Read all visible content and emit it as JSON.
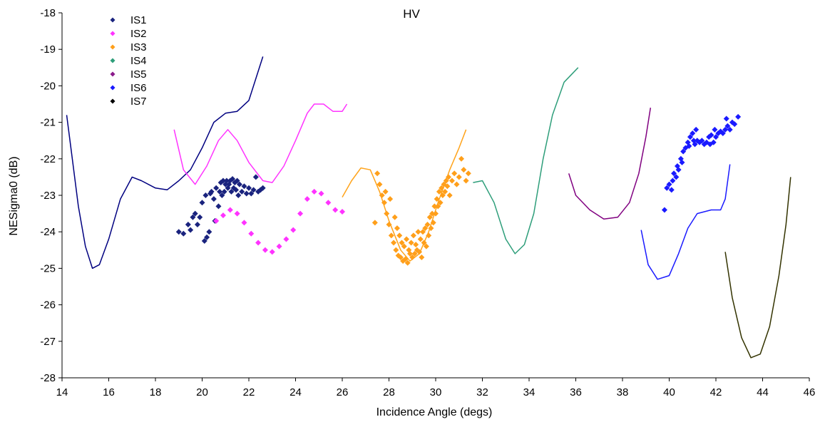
{
  "chart_data": {
    "type": "scatter",
    "title": "HV",
    "xlabel": "Incidence Angle (degs)",
    "ylabel": "NESigma0 (dB)",
    "xlim": [
      14,
      46
    ],
    "ylim": [
      -28,
      -18
    ],
    "xticks": [
      "14",
      "16",
      "18",
      "20",
      "22",
      "24",
      "26",
      "28",
      "30",
      "32",
      "34",
      "36",
      "38",
      "40",
      "42",
      "44",
      "46"
    ],
    "yticks": [
      "-28",
      "-27",
      "-26",
      "-25",
      "-24",
      "-23",
      "-22",
      "-21",
      "-20",
      "-19",
      "-18"
    ],
    "grid": false,
    "legend_position": "top-left",
    "legend": [
      {
        "name": "IS1",
        "color": "#1a237e"
      },
      {
        "name": "IS2",
        "color": "#ff33ff"
      },
      {
        "name": "IS3",
        "color": "#ff9f1a"
      },
      {
        "name": "IS4",
        "color": "#2e9e7a"
      },
      {
        "name": "IS5",
        "color": "#8b1a8b"
      },
      {
        "name": "IS6",
        "color": "#1a1aff"
      },
      {
        "name": "IS7",
        "color": "#000000"
      }
    ],
    "lines": [
      {
        "color": "#000080",
        "points": [
          [
            14.2,
            -20.8
          ],
          [
            14.4,
            -21.8
          ],
          [
            14.7,
            -23.3
          ],
          [
            15.0,
            -24.4
          ],
          [
            15.3,
            -25.0
          ],
          [
            15.6,
            -24.9
          ],
          [
            16.0,
            -24.2
          ],
          [
            16.5,
            -23.1
          ],
          [
            17.0,
            -22.5
          ],
          [
            17.4,
            -22.6
          ],
          [
            18.0,
            -22.8
          ],
          [
            18.5,
            -22.85
          ],
          [
            19.0,
            -22.6
          ],
          [
            19.5,
            -22.3
          ],
          [
            20.0,
            -21.7
          ],
          [
            20.5,
            -21.0
          ],
          [
            21.0,
            -20.75
          ],
          [
            21.5,
            -20.7
          ],
          [
            22.0,
            -20.4
          ],
          [
            22.6,
            -19.2
          ]
        ]
      },
      {
        "color": "#ff33ff",
        "points": [
          [
            18.8,
            -21.2
          ],
          [
            19.2,
            -22.3
          ],
          [
            19.7,
            -22.7
          ],
          [
            20.2,
            -22.2
          ],
          [
            20.7,
            -21.5
          ],
          [
            21.1,
            -21.2
          ],
          [
            21.5,
            -21.5
          ],
          [
            22.0,
            -22.1
          ],
          [
            22.6,
            -22.6
          ],
          [
            23.0,
            -22.65
          ],
          [
            23.5,
            -22.2
          ],
          [
            24.0,
            -21.5
          ],
          [
            24.5,
            -20.75
          ],
          [
            24.8,
            -20.5
          ],
          [
            25.2,
            -20.5
          ],
          [
            25.6,
            -20.7
          ],
          [
            26.0,
            -20.7
          ],
          [
            26.2,
            -20.5
          ]
        ]
      },
      {
        "color": "#ffa31a",
        "points": [
          [
            26.0,
            -23.05
          ],
          [
            26.4,
            -22.6
          ],
          [
            26.8,
            -22.25
          ],
          [
            27.2,
            -22.3
          ],
          [
            27.6,
            -22.9
          ],
          [
            28.0,
            -23.7
          ],
          [
            28.5,
            -24.5
          ],
          [
            28.9,
            -24.8
          ],
          [
            29.3,
            -24.6
          ],
          [
            29.7,
            -24.0
          ],
          [
            30.1,
            -23.2
          ],
          [
            30.6,
            -22.3
          ],
          [
            31.0,
            -21.7
          ],
          [
            31.3,
            -21.2
          ]
        ]
      },
      {
        "color": "#2e9e7a",
        "points": [
          [
            31.6,
            -22.65
          ],
          [
            32.0,
            -22.6
          ],
          [
            32.5,
            -23.2
          ],
          [
            33.0,
            -24.2
          ],
          [
            33.4,
            -24.6
          ],
          [
            33.8,
            -24.35
          ],
          [
            34.2,
            -23.5
          ],
          [
            34.6,
            -22.0
          ],
          [
            35.0,
            -20.8
          ],
          [
            35.5,
            -19.9
          ],
          [
            36.1,
            -19.5
          ]
        ]
      },
      {
        "color": "#800080",
        "points": [
          [
            35.7,
            -22.4
          ],
          [
            36.0,
            -23.0
          ],
          [
            36.6,
            -23.4
          ],
          [
            37.2,
            -23.65
          ],
          [
            37.8,
            -23.6
          ],
          [
            38.3,
            -23.2
          ],
          [
            38.7,
            -22.4
          ],
          [
            39.0,
            -21.4
          ],
          [
            39.2,
            -20.6
          ]
        ]
      },
      {
        "color": "#1a1aff",
        "points": [
          [
            38.8,
            -23.95
          ],
          [
            39.1,
            -24.9
          ],
          [
            39.5,
            -25.3
          ],
          [
            40.0,
            -25.2
          ],
          [
            40.4,
            -24.6
          ],
          [
            40.8,
            -23.9
          ],
          [
            41.2,
            -23.5
          ],
          [
            41.8,
            -23.4
          ],
          [
            42.2,
            -23.4
          ],
          [
            42.4,
            -23.1
          ],
          [
            42.6,
            -22.15
          ]
        ]
      },
      {
        "color": "#333300",
        "points": [
          [
            42.4,
            -24.55
          ],
          [
            42.7,
            -25.8
          ],
          [
            43.1,
            -26.9
          ],
          [
            43.5,
            -27.45
          ],
          [
            43.9,
            -27.35
          ],
          [
            44.3,
            -26.6
          ],
          [
            44.7,
            -25.2
          ],
          [
            45.0,
            -23.8
          ],
          [
            45.2,
            -22.5
          ]
        ]
      }
    ],
    "scatter": [
      {
        "name": "IS1",
        "color": "#1a237e",
        "points": [
          [
            19.0,
            -24.0
          ],
          [
            19.2,
            -24.05
          ],
          [
            19.4,
            -23.8
          ],
          [
            19.5,
            -23.95
          ],
          [
            19.6,
            -23.6
          ],
          [
            19.7,
            -23.5
          ],
          [
            19.8,
            -23.8
          ],
          [
            19.9,
            -23.6
          ],
          [
            20.0,
            -23.2
          ],
          [
            20.1,
            -24.25
          ],
          [
            20.15,
            -23.0
          ],
          [
            20.2,
            -24.15
          ],
          [
            20.3,
            -24.0
          ],
          [
            20.35,
            -22.95
          ],
          [
            20.4,
            -22.9
          ],
          [
            20.5,
            -23.1
          ],
          [
            20.55,
            -23.7
          ],
          [
            20.6,
            -22.8
          ],
          [
            20.7,
            -23.3
          ],
          [
            20.75,
            -22.9
          ],
          [
            20.8,
            -22.65
          ],
          [
            20.85,
            -23.0
          ],
          [
            20.9,
            -22.6
          ],
          [
            20.95,
            -22.9
          ],
          [
            21.0,
            -22.7
          ],
          [
            21.05,
            -22.6
          ],
          [
            21.1,
            -22.8
          ],
          [
            21.15,
            -22.7
          ],
          [
            21.2,
            -22.6
          ],
          [
            21.25,
            -22.9
          ],
          [
            21.3,
            -22.55
          ],
          [
            21.35,
            -22.8
          ],
          [
            21.4,
            -22.65
          ],
          [
            21.45,
            -22.85
          ],
          [
            21.5,
            -22.6
          ],
          [
            21.55,
            -23.0
          ],
          [
            21.6,
            -22.7
          ],
          [
            21.7,
            -22.9
          ],
          [
            21.8,
            -22.75
          ],
          [
            21.9,
            -22.95
          ],
          [
            22.0,
            -22.8
          ],
          [
            22.1,
            -22.95
          ],
          [
            22.2,
            -22.85
          ],
          [
            22.3,
            -22.5
          ],
          [
            22.4,
            -22.9
          ],
          [
            22.5,
            -22.85
          ],
          [
            22.6,
            -22.8
          ]
        ]
      },
      {
        "name": "IS2",
        "color": "#ff33ff",
        "points": [
          [
            20.6,
            -23.7
          ],
          [
            20.9,
            -23.55
          ],
          [
            21.2,
            -23.4
          ],
          [
            21.5,
            -23.5
          ],
          [
            21.8,
            -23.75
          ],
          [
            22.1,
            -24.05
          ],
          [
            22.4,
            -24.3
          ],
          [
            22.7,
            -24.5
          ],
          [
            23.0,
            -24.55
          ],
          [
            23.3,
            -24.4
          ],
          [
            23.6,
            -24.2
          ],
          [
            23.9,
            -23.95
          ],
          [
            24.2,
            -23.5
          ],
          [
            24.5,
            -23.1
          ],
          [
            24.8,
            -22.9
          ],
          [
            25.1,
            -22.95
          ],
          [
            25.4,
            -23.2
          ],
          [
            25.7,
            -23.4
          ],
          [
            26.0,
            -23.45
          ]
        ]
      },
      {
        "name": "IS3",
        "color": "#ff9f1a",
        "points": [
          [
            27.4,
            -23.75
          ],
          [
            27.5,
            -22.4
          ],
          [
            27.6,
            -22.7
          ],
          [
            27.7,
            -23.0
          ],
          [
            27.8,
            -23.2
          ],
          [
            27.85,
            -22.9
          ],
          [
            27.9,
            -23.5
          ],
          [
            28.0,
            -23.8
          ],
          [
            28.05,
            -23.1
          ],
          [
            28.1,
            -24.1
          ],
          [
            28.2,
            -24.3
          ],
          [
            28.25,
            -23.6
          ],
          [
            28.3,
            -24.5
          ],
          [
            28.35,
            -23.9
          ],
          [
            28.4,
            -24.65
          ],
          [
            28.45,
            -24.1
          ],
          [
            28.5,
            -24.7
          ],
          [
            28.55,
            -24.3
          ],
          [
            28.6,
            -24.8
          ],
          [
            28.65,
            -24.4
          ],
          [
            28.7,
            -24.75
          ],
          [
            28.75,
            -24.2
          ],
          [
            28.8,
            -24.85
          ],
          [
            28.85,
            -24.5
          ],
          [
            28.9,
            -24.6
          ],
          [
            28.95,
            -24.3
          ],
          [
            29.0,
            -24.7
          ],
          [
            29.05,
            -24.1
          ],
          [
            29.1,
            -24.6
          ],
          [
            29.15,
            -24.35
          ],
          [
            29.2,
            -24.5
          ],
          [
            29.25,
            -24.0
          ],
          [
            29.3,
            -24.55
          ],
          [
            29.35,
            -24.2
          ],
          [
            29.4,
            -24.7
          ],
          [
            29.45,
            -24.0
          ],
          [
            29.5,
            -24.3
          ],
          [
            29.55,
            -23.9
          ],
          [
            29.6,
            -24.4
          ],
          [
            29.65,
            -23.8
          ],
          [
            29.7,
            -24.1
          ],
          [
            29.75,
            -23.6
          ],
          [
            29.8,
            -23.9
          ],
          [
            29.85,
            -23.5
          ],
          [
            29.9,
            -23.75
          ],
          [
            29.95,
            -23.3
          ],
          [
            30.0,
            -23.5
          ],
          [
            30.05,
            -23.1
          ],
          [
            30.1,
            -23.3
          ],
          [
            30.15,
            -22.9
          ],
          [
            30.2,
            -23.2
          ],
          [
            30.25,
            -22.8
          ],
          [
            30.3,
            -23.0
          ],
          [
            30.35,
            -22.7
          ],
          [
            30.4,
            -22.9
          ],
          [
            30.45,
            -22.6
          ],
          [
            30.5,
            -22.75
          ],
          [
            30.55,
            -22.5
          ],
          [
            30.6,
            -23.0
          ],
          [
            30.7,
            -22.6
          ],
          [
            30.8,
            -22.4
          ],
          [
            30.9,
            -22.7
          ],
          [
            31.0,
            -22.5
          ],
          [
            31.1,
            -22.0
          ],
          [
            31.2,
            -22.3
          ],
          [
            31.3,
            -22.6
          ],
          [
            31.4,
            -22.4
          ]
        ]
      },
      {
        "name": "IS6",
        "color": "#1a1aff",
        "points": [
          [
            39.8,
            -23.4
          ],
          [
            39.9,
            -22.8
          ],
          [
            40.0,
            -22.7
          ],
          [
            40.1,
            -22.85
          ],
          [
            40.15,
            -22.6
          ],
          [
            40.2,
            -22.4
          ],
          [
            40.3,
            -22.5
          ],
          [
            40.35,
            -22.2
          ],
          [
            40.4,
            -22.3
          ],
          [
            40.5,
            -22.0
          ],
          [
            40.55,
            -22.1
          ],
          [
            40.6,
            -21.8
          ],
          [
            40.7,
            -21.7
          ],
          [
            40.8,
            -21.55
          ],
          [
            40.85,
            -21.65
          ],
          [
            40.9,
            -21.4
          ],
          [
            41.0,
            -21.3
          ],
          [
            41.05,
            -21.5
          ],
          [
            41.1,
            -21.6
          ],
          [
            41.15,
            -21.2
          ],
          [
            41.2,
            -21.5
          ],
          [
            41.3,
            -21.55
          ],
          [
            41.4,
            -21.5
          ],
          [
            41.5,
            -21.6
          ],
          [
            41.6,
            -21.55
          ],
          [
            41.7,
            -21.4
          ],
          [
            41.75,
            -21.6
          ],
          [
            41.8,
            -21.35
          ],
          [
            41.9,
            -21.55
          ],
          [
            41.95,
            -21.2
          ],
          [
            42.0,
            -21.4
          ],
          [
            42.1,
            -21.3
          ],
          [
            42.2,
            -21.25
          ],
          [
            42.3,
            -21.3
          ],
          [
            42.4,
            -21.2
          ],
          [
            42.45,
            -20.9
          ],
          [
            42.5,
            -21.1
          ],
          [
            42.6,
            -21.2
          ],
          [
            42.7,
            -21.0
          ],
          [
            42.8,
            -21.05
          ],
          [
            42.95,
            -20.85
          ]
        ]
      }
    ]
  }
}
